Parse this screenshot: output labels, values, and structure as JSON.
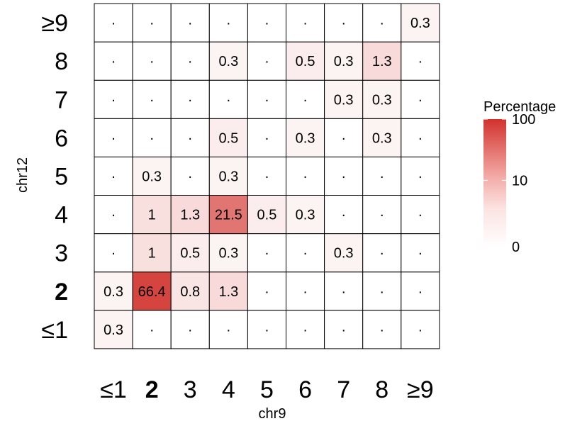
{
  "chart_data": {
    "type": "heatmap",
    "title": "",
    "xlabel": "chr9",
    "ylabel": "chr12",
    "x_categories": [
      "≤1",
      "2",
      "3",
      "4",
      "5",
      "6",
      "7",
      "8",
      "≥9"
    ],
    "y_categories": [
      "≤1",
      "2",
      "3",
      "4",
      "5",
      "6",
      "7",
      "8",
      "≥9"
    ],
    "bold_category": "2",
    "empty_cell_label": "·",
    "values": [
      [
        0.3,
        null,
        null,
        null,
        null,
        null,
        null,
        null,
        null
      ],
      [
        0.3,
        66.4,
        0.8,
        1.3,
        null,
        null,
        null,
        null,
        null
      ],
      [
        null,
        1,
        0.5,
        0.3,
        null,
        null,
        0.3,
        null,
        null
      ],
      [
        null,
        1,
        1.3,
        21.5,
        0.5,
        0.3,
        null,
        null,
        null
      ],
      [
        null,
        0.3,
        null,
        0.3,
        null,
        null,
        null,
        null,
        null
      ],
      [
        null,
        null,
        null,
        0.5,
        null,
        0.3,
        null,
        0.3,
        null
      ],
      [
        null,
        null,
        null,
        null,
        null,
        null,
        0.3,
        0.3,
        null
      ],
      [
        null,
        null,
        null,
        0.3,
        null,
        0.5,
        0.3,
        1.3,
        null
      ],
      [
        null,
        null,
        null,
        null,
        null,
        null,
        null,
        null,
        0.3
      ]
    ],
    "legend": {
      "title": "Percentage",
      "ticks": [
        "100",
        "10",
        "0"
      ],
      "scale": "log",
      "color_low": "#ffffff",
      "color_high": "#d2322d"
    }
  }
}
